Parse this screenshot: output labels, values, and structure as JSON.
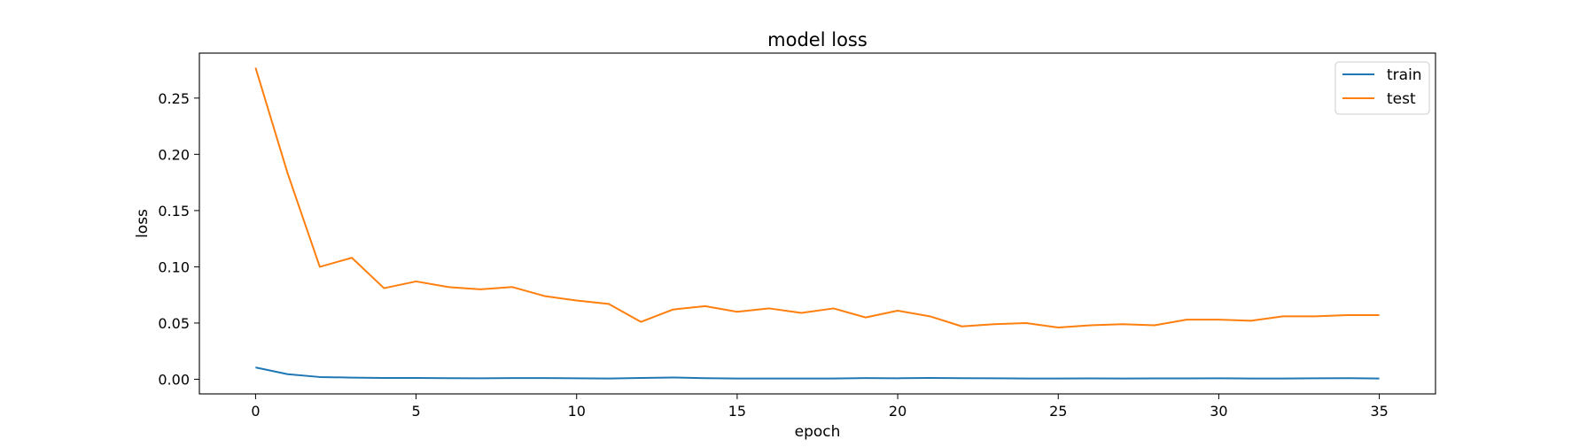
{
  "chart_data": {
    "type": "line",
    "title": "model loss",
    "xlabel": "epoch",
    "ylabel": "loss",
    "xlim": [
      -1.75,
      36.75
    ],
    "ylim": [
      -0.013,
      0.29
    ],
    "x_ticks": [
      0,
      5,
      10,
      15,
      20,
      25,
      30,
      35
    ],
    "y_ticks": [
      0.0,
      0.05,
      0.1,
      0.15,
      0.2,
      0.25
    ],
    "y_tick_labels": [
      "0.00",
      "0.05",
      "0.10",
      "0.15",
      "0.20",
      "0.25"
    ],
    "grid": false,
    "legend_position": "top-right",
    "x": [
      0,
      1,
      2,
      3,
      4,
      5,
      6,
      7,
      8,
      9,
      10,
      11,
      12,
      13,
      14,
      15,
      16,
      17,
      18,
      19,
      20,
      21,
      22,
      23,
      24,
      25,
      26,
      27,
      28,
      29,
      30,
      31,
      32,
      33,
      34,
      35
    ],
    "series": [
      {
        "name": "train",
        "color": "#1f77b4",
        "values": [
          0.0105,
          0.0045,
          0.002,
          0.0015,
          0.0012,
          0.0012,
          0.001,
          0.0009,
          0.0011,
          0.0011,
          0.0009,
          0.0007,
          0.0012,
          0.0016,
          0.001,
          0.0007,
          0.0007,
          0.0007,
          0.0007,
          0.0011,
          0.0009,
          0.0012,
          0.001,
          0.0009,
          0.0007,
          0.0007,
          0.0008,
          0.0007,
          0.0008,
          0.0008,
          0.0009,
          0.0007,
          0.0007,
          0.0009,
          0.001,
          0.0007
        ]
      },
      {
        "name": "test",
        "color": "#ff7f0e",
        "values": [
          0.277,
          0.183,
          0.1,
          0.108,
          0.081,
          0.087,
          0.082,
          0.08,
          0.082,
          0.074,
          0.07,
          0.067,
          0.051,
          0.062,
          0.065,
          0.06,
          0.063,
          0.059,
          0.063,
          0.055,
          0.061,
          0.056,
          0.047,
          0.049,
          0.05,
          0.046,
          0.048,
          0.049,
          0.048,
          0.053,
          0.053,
          0.052,
          0.056,
          0.056,
          0.057,
          0.057
        ]
      }
    ]
  }
}
